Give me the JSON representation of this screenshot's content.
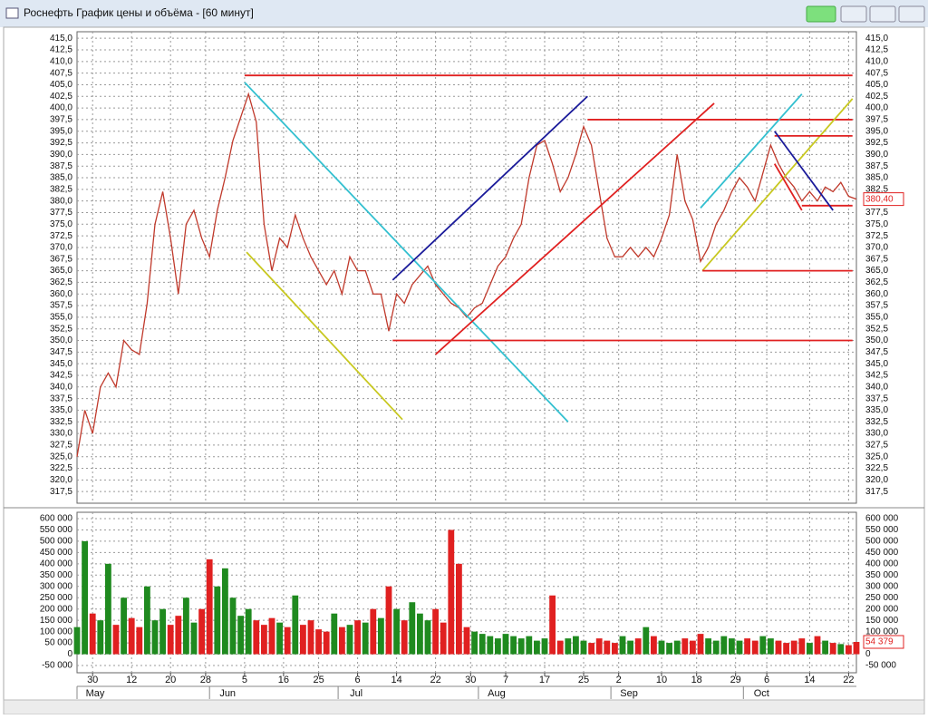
{
  "window": {
    "title": "Роснефть График цены и объёма - [60 минут]"
  },
  "chart_data": [
    {
      "type": "line",
      "color": "#c0392b",
      "xlim": [
        0,
        200
      ],
      "ylim": [
        315,
        416.4
      ],
      "grid": true,
      "x": [
        0,
        2,
        4,
        6,
        8,
        10,
        12,
        14,
        16,
        18,
        20,
        22,
        24,
        26,
        28,
        30,
        32,
        34,
        36,
        38,
        40,
        42,
        44,
        46,
        48,
        50,
        52,
        54,
        56,
        58,
        60,
        62,
        64,
        66,
        68,
        70,
        72,
        74,
        76,
        78,
        80,
        82,
        84,
        86,
        88,
        90,
        92,
        94,
        96,
        98,
        100,
        102,
        104,
        106,
        108,
        110,
        112,
        114,
        116,
        118,
        120,
        122,
        124,
        126,
        128,
        130,
        132,
        134,
        136,
        138,
        140,
        142,
        144,
        146,
        148,
        150,
        152,
        154,
        156,
        158,
        160,
        162,
        164,
        166,
        168,
        170,
        172,
        174,
        176,
        178,
        180,
        182,
        184,
        186,
        188,
        190,
        192,
        194,
        196,
        198,
        200
      ],
      "values": [
        325,
        335,
        330,
        340,
        343,
        340,
        350,
        348,
        347,
        358,
        375,
        382,
        372,
        360,
        375,
        378,
        372,
        368,
        378,
        385,
        393,
        398,
        403,
        397,
        375,
        365,
        372,
        370,
        377,
        372,
        368,
        365,
        362,
        365,
        360,
        368,
        365,
        365,
        360,
        360,
        352,
        360,
        358,
        362,
        364,
        366,
        362,
        360,
        358,
        357,
        355,
        357,
        358,
        362,
        366,
        368,
        372,
        375,
        385,
        392,
        393,
        388,
        382,
        385,
        390,
        396,
        392,
        382,
        372,
        368,
        368,
        370,
        368,
        370,
        368,
        372,
        377,
        390,
        380,
        376,
        367,
        370,
        375,
        378,
        382,
        385,
        383,
        380,
        386,
        392,
        388,
        385,
        383,
        380,
        382,
        380,
        383,
        382,
        384,
        381,
        380.4
      ],
      "last": {
        "value": 380.4,
        "label": "380,40"
      },
      "yticks": [
        {
          "value": 415,
          "label": "415,0"
        },
        {
          "value": 412.5,
          "label": "412,5"
        },
        {
          "value": 410,
          "label": "410,0"
        },
        {
          "value": 407.5,
          "label": "407,5"
        },
        {
          "value": 405,
          "label": "405,0"
        },
        {
          "value": 402.5,
          "label": "402,5"
        },
        {
          "value": 400,
          "label": "400,0"
        },
        {
          "value": 397.5,
          "label": "397,5"
        },
        {
          "value": 395,
          "label": "395,0"
        },
        {
          "value": 392.5,
          "label": "392,5"
        },
        {
          "value": 390,
          "label": "390,0"
        },
        {
          "value": 387.5,
          "label": "387,5"
        },
        {
          "value": 385,
          "label": "385,0"
        },
        {
          "value": 382.5,
          "label": "382,5"
        },
        {
          "value": 380,
          "label": "380,0"
        },
        {
          "value": 377.5,
          "label": "377,5"
        },
        {
          "value": 375,
          "label": "375,0"
        },
        {
          "value": 372.5,
          "label": "372,5"
        },
        {
          "value": 370,
          "label": "370,0"
        },
        {
          "value": 367.5,
          "label": "367,5"
        },
        {
          "value": 365,
          "label": "365,0"
        },
        {
          "value": 362.5,
          "label": "362,5"
        },
        {
          "value": 360,
          "label": "360,0"
        },
        {
          "value": 357.5,
          "label": "357,5"
        },
        {
          "value": 355,
          "label": "355,0"
        },
        {
          "value": 352.5,
          "label": "352,5"
        },
        {
          "value": 350,
          "label": "350,0"
        },
        {
          "value": 347.5,
          "label": "347,5"
        },
        {
          "value": 345,
          "label": "345,0"
        },
        {
          "value": 342.5,
          "label": "342,5"
        },
        {
          "value": 340,
          "label": "340,0"
        },
        {
          "value": 337.5,
          "label": "337,5"
        },
        {
          "value": 335,
          "label": "335,0"
        },
        {
          "value": 332.5,
          "label": "332,5"
        },
        {
          "value": 330,
          "label": "330,0"
        },
        {
          "value": 327.5,
          "label": "327,5"
        },
        {
          "value": 325,
          "label": "325,0"
        },
        {
          "value": 322.5,
          "label": "322,5"
        },
        {
          "value": 320,
          "label": "320,0"
        },
        {
          "value": 317.5,
          "label": "317,5"
        }
      ],
      "lines": [
        {
          "color": "#e02020",
          "x": [
            43,
            199
          ],
          "y": [
            407,
            407
          ]
        },
        {
          "color": "#33c0d0",
          "x": [
            43,
            126
          ],
          "y": [
            405.5,
            332.5
          ]
        },
        {
          "color": "#c8c820",
          "x": [
            43.5,
            83.5
          ],
          "y": [
            369,
            333
          ]
        },
        {
          "color": "#e02020",
          "x": [
            81,
            199
          ],
          "y": [
            350,
            350
          ]
        },
        {
          "color": "#1a1a9a",
          "x": [
            81,
            131
          ],
          "y": [
            363,
            402.5
          ]
        },
        {
          "color": "#e02020",
          "x": [
            92,
            163.5
          ],
          "y": [
            347,
            401
          ]
        },
        {
          "color": "#e02020",
          "x": [
            131,
            199
          ],
          "y": [
            397.5,
            397.5
          ]
        },
        {
          "color": "#33c0d0",
          "x": [
            160,
            186
          ],
          "y": [
            378.5,
            403
          ]
        },
        {
          "color": "#c8c820",
          "x": [
            160.5,
            199
          ],
          "y": [
            365,
            402
          ]
        },
        {
          "color": "#e02020",
          "x": [
            160.5,
            199
          ],
          "y": [
            365,
            365
          ]
        },
        {
          "color": "#e02020",
          "x": [
            179,
            199
          ],
          "y": [
            394,
            394
          ]
        },
        {
          "color": "#e02020",
          "x": [
            179,
            186
          ],
          "y": [
            388,
            378
          ]
        },
        {
          "color": "#e02020",
          "x": [
            186,
            199
          ],
          "y": [
            379,
            379
          ]
        },
        {
          "color": "#1a1a9a",
          "x": [
            179,
            194
          ],
          "y": [
            395,
            378
          ]
        }
      ]
    },
    {
      "type": "bar",
      "up_color": "#1f8a1f",
      "down_color": "#e02020",
      "xlim": [
        0,
        200
      ],
      "ylim": [
        -82000,
        628000
      ],
      "grid": true,
      "values": [
        120000,
        500000,
        180000,
        150000,
        400000,
        130000,
        250000,
        160000,
        120000,
        300000,
        150000,
        200000,
        130000,
        170000,
        250000,
        140000,
        200000,
        420000,
        300000,
        380000,
        250000,
        170000,
        200000,
        150000,
        130000,
        160000,
        140000,
        120000,
        260000,
        130000,
        150000,
        110000,
        100000,
        180000,
        120000,
        130000,
        150000,
        140000,
        200000,
        160000,
        300000,
        200000,
        150000,
        230000,
        180000,
        150000,
        200000,
        140000,
        550000,
        400000,
        120000,
        100000,
        90000,
        80000,
        70000,
        90000,
        80000,
        70000,
        80000,
        60000,
        70000,
        260000,
        60000,
        70000,
        80000,
        60000,
        50000,
        70000,
        60000,
        50000,
        80000,
        60000,
        70000,
        120000,
        80000,
        60000,
        50000,
        60000,
        70000,
        60000,
        90000,
        70000,
        60000,
        80000,
        70000,
        60000,
        70000,
        60000,
        80000,
        70000,
        60000,
        50000,
        60000,
        70000,
        50000,
        80000,
        60000,
        50000,
        45000,
        40000,
        54379
      ],
      "last": {
        "value": 54379,
        "label": "54 379"
      },
      "yticks": [
        {
          "value": 600000,
          "label": "600 000"
        },
        {
          "value": 550000,
          "label": "550 000"
        },
        {
          "value": 500000,
          "label": "500 000"
        },
        {
          "value": 450000,
          "label": "450 000"
        },
        {
          "value": 400000,
          "label": "400 000"
        },
        {
          "value": 350000,
          "label": "350 000"
        },
        {
          "value": 300000,
          "label": "300 000"
        },
        {
          "value": 250000,
          "label": "250 000"
        },
        {
          "value": 200000,
          "label": "200 000"
        },
        {
          "value": 150000,
          "label": "150 000"
        },
        {
          "value": 100000,
          "label": "100 000"
        },
        {
          "value": 50000,
          "label": "50 000"
        },
        0,
        {
          "value": -50000,
          "label": "-50 000"
        }
      ],
      "xticks": [
        {
          "value": 4,
          "label": "30"
        },
        {
          "value": 14,
          "label": "12"
        },
        {
          "value": 24,
          "label": "20"
        },
        {
          "value": 33,
          "label": "28"
        },
        {
          "value": 43,
          "label": "5"
        },
        {
          "value": 53,
          "label": "16"
        },
        {
          "value": 62,
          "label": "25"
        },
        {
          "value": 72,
          "label": "6"
        },
        {
          "value": 82,
          "label": "14"
        },
        {
          "value": 92,
          "label": "22"
        },
        {
          "value": 101,
          "label": "30"
        },
        {
          "value": 110,
          "label": "7"
        },
        {
          "value": 120,
          "label": "17"
        },
        {
          "value": 130,
          "label": "25"
        },
        {
          "value": 139,
          "label": "2"
        },
        {
          "value": 150,
          "label": "10"
        },
        {
          "value": 159,
          "label": "18"
        },
        {
          "value": 169,
          "label": "29"
        },
        {
          "value": 177,
          "label": "6"
        },
        {
          "value": 188,
          "label": "14"
        },
        {
          "value": 198,
          "label": "22"
        }
      ],
      "months": [
        {
          "value": 0,
          "label": "May"
        },
        {
          "value": 34,
          "label": "Jun"
        },
        {
          "value": 67,
          "label": "Jul"
        },
        {
          "value": 103,
          "label": "Aug"
        },
        {
          "value": 137,
          "label": "Sep"
        },
        {
          "value": 171,
          "label": "Oct"
        }
      ]
    }
  ]
}
